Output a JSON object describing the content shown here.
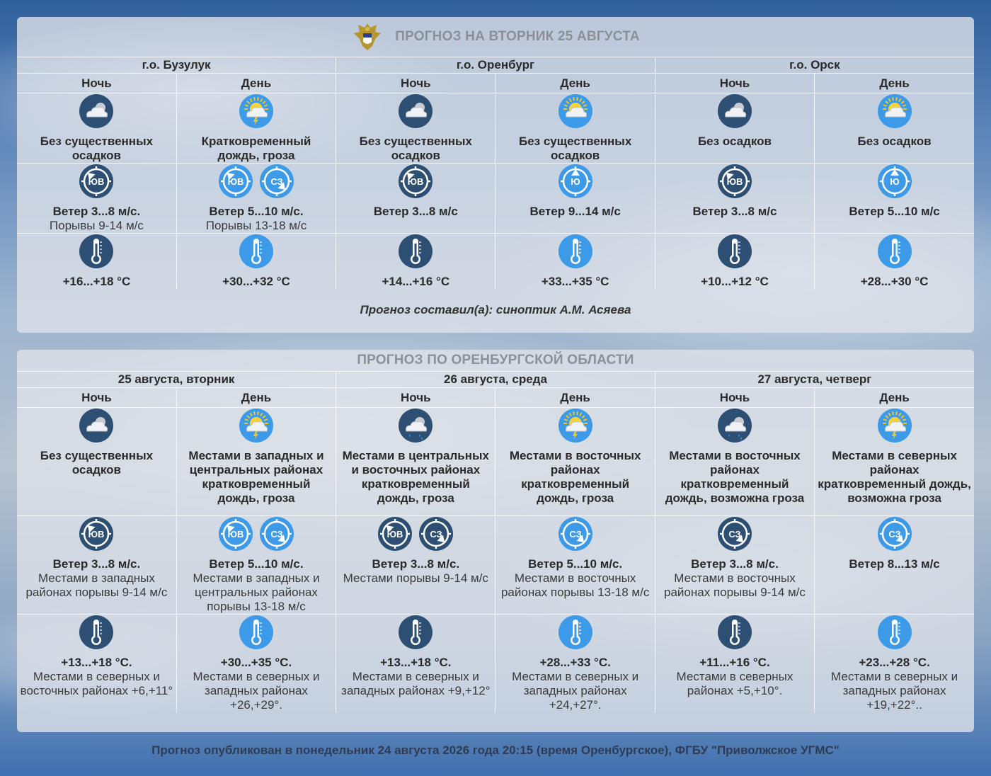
{
  "page": {
    "title": "ПРОГНОЗ НА ВТОРНИК 25 АВГУСТА",
    "author": "Прогноз составил(а): синоптик А.М. Асяева",
    "footer": "Прогноз опубликован в понедельник 24 августа 2026 года 20:15 (время Оренбургское), ФГБУ \"Приволжское УГМС\""
  },
  "cities": {
    "headers": [
      "г.о. Бузулук",
      "г.о. Оренбург",
      "г.о. Орск"
    ],
    "periods": [
      "Ночь",
      "День",
      "Ночь",
      "День",
      "Ночь",
      "День"
    ],
    "cells": [
      {
        "weather_icon": "cloud-night-icon",
        "weather": "Без существенных осадков",
        "wind_icons": [
          {
            "name": "wind-southeast-icon",
            "label": "ЮВ"
          }
        ],
        "wind": "Ветер 3...8 м/с.",
        "wind_note": "Порывы 9-14 м/с",
        "temp": "+16...+18 °С",
        "temp_note": ""
      },
      {
        "weather_icon": "sun-cloud-thunder-rain-icon",
        "weather": "Кратковременный дождь, гроза",
        "wind_icons": [
          {
            "name": "wind-southeast-icon",
            "label": "ЮВ"
          },
          {
            "name": "wind-northwest-icon",
            "label": "СЗ"
          }
        ],
        "wind": "Ветер 5...10 м/с.",
        "wind_note": "Порывы 13-18 м/с",
        "temp": "+30...+32 °С",
        "temp_note": ""
      },
      {
        "weather_icon": "cloud-night-icon",
        "weather": "Без существенных осадков",
        "wind_icons": [
          {
            "name": "wind-southeast-icon",
            "label": "ЮВ"
          }
        ],
        "wind": "Ветер 3...8 м/с",
        "wind_note": "",
        "temp": "+14...+16 °С",
        "temp_note": ""
      },
      {
        "weather_icon": "sun-cloud-icon",
        "weather": "Без существенных осадков",
        "wind_icons": [
          {
            "name": "wind-south-icon",
            "label": "Ю"
          }
        ],
        "wind": "Ветер 9...14 м/с",
        "wind_note": "",
        "temp": "+33...+35 °С",
        "temp_note": ""
      },
      {
        "weather_icon": "cloud-night-icon",
        "weather": "Без осадков",
        "wind_icons": [
          {
            "name": "wind-southeast-icon",
            "label": "ЮВ"
          }
        ],
        "wind": "Ветер 3...8 м/с",
        "wind_note": "",
        "temp": "+10...+12 °С",
        "temp_note": ""
      },
      {
        "weather_icon": "sun-cloud-icon",
        "weather": "Без осадков",
        "wind_icons": [
          {
            "name": "wind-south-icon",
            "label": "Ю"
          }
        ],
        "wind": "Ветер 5...10 м/с",
        "wind_note": "",
        "temp": "+28...+30 °С",
        "temp_note": ""
      }
    ]
  },
  "region": {
    "title": "ПРОГНОЗ ПО ОРЕНБУРГСКОЙ ОБЛАСТИ",
    "headers": [
      "25 августа, вторник",
      "26 августа, среда",
      "27 августа, четверг"
    ],
    "periods": [
      "Ночь",
      "День",
      "Ночь",
      "День",
      "Ночь",
      "День"
    ],
    "cells": [
      {
        "weather_icon": "cloud-night-icon",
        "weather": "Без существенных осадков",
        "wind_icons": [
          {
            "name": "wind-southeast-icon",
            "label": "ЮВ"
          }
        ],
        "wind": "Ветер 3...8 м/с.",
        "wind_note": "Местами в западных районах порывы 9-14 м/с",
        "temp": "+13...+18 °С.",
        "temp_note": "Местами в северных и восточных районах +6,+11°"
      },
      {
        "weather_icon": "sun-cloud-thunder-rain-icon",
        "weather": "Местами в западных и центральных районах кратковременный дождь, гроза",
        "wind_icons": [
          {
            "name": "wind-southeast-icon",
            "label": "ЮВ"
          },
          {
            "name": "wind-northwest-icon",
            "label": "СЗ"
          }
        ],
        "wind": "Ветер 5...10 м/с.",
        "wind_note": "Местами в западных и центральных районах порывы 13-18 м/с",
        "temp": "+30...+35 °С.",
        "temp_note": "Местами в северных и западных районах +26,+29°."
      },
      {
        "weather_icon": "cloud-night-rain-icon",
        "weather": "Местами в центральных и восточных районах кратковременный дождь, гроза",
        "wind_icons": [
          {
            "name": "wind-southeast-icon",
            "label": "ЮВ"
          },
          {
            "name": "wind-northwest-icon",
            "label": "СЗ"
          }
        ],
        "wind": "Ветер 3...8 м/с.",
        "wind_note": "Местами порывы 9-14 м/с",
        "temp": "+13...+18 °С.",
        "temp_note": "Местами в северных и западных районах +9,+12°"
      },
      {
        "weather_icon": "sun-cloud-thunder-rain-icon",
        "weather": "Местами в восточных районах кратковременный дождь, гроза",
        "wind_icons": [
          {
            "name": "wind-northwest-icon",
            "label": "СЗ"
          }
        ],
        "wind": "Ветер 5...10 м/с.",
        "wind_note": "Местами в восточных районах порывы 13-18 м/с",
        "temp": "+28...+33 °С.",
        "temp_note": "Местами в северных и западных районах +24,+27°."
      },
      {
        "weather_icon": "cloud-night-rain-icon",
        "weather": "Местами в восточных районах кратковременный дождь, возможна гроза",
        "wind_icons": [
          {
            "name": "wind-northwest-icon",
            "label": "СЗ"
          }
        ],
        "wind": "Ветер 3...8 м/с.",
        "wind_note": "Местами в восточных районах порывы 9-14 м/с",
        "temp": "+11...+16 °С.",
        "temp_note": "Местами в северных районах +5,+10°."
      },
      {
        "weather_icon": "sun-cloud-thunder-rain-icon",
        "weather": "Местами в северных районах кратковременный дождь, возможна гроза",
        "wind_icons": [
          {
            "name": "wind-northwest-icon",
            "label": "СЗ"
          }
        ],
        "wind": "Ветер 8...13 м/с",
        "wind_note": "",
        "temp": "+23...+28 °С.",
        "temp_note": "Местами в северных и западных районах +19,+22°.."
      }
    ]
  },
  "colors": {
    "night_icon": "#2d4f73",
    "day_icon": "#3d9ae8",
    "title_gray": "#8c9096"
  }
}
